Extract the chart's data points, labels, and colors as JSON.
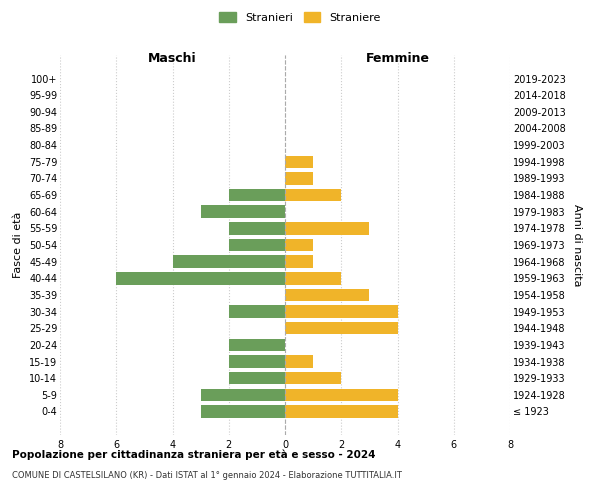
{
  "age_groups": [
    "100+",
    "95-99",
    "90-94",
    "85-89",
    "80-84",
    "75-79",
    "70-74",
    "65-69",
    "60-64",
    "55-59",
    "50-54",
    "45-49",
    "40-44",
    "35-39",
    "30-34",
    "25-29",
    "20-24",
    "15-19",
    "10-14",
    "5-9",
    "0-4"
  ],
  "birth_years": [
    "≤ 1923",
    "1924-1928",
    "1929-1933",
    "1934-1938",
    "1939-1943",
    "1944-1948",
    "1949-1953",
    "1954-1958",
    "1959-1963",
    "1964-1968",
    "1969-1973",
    "1974-1978",
    "1979-1983",
    "1984-1988",
    "1989-1993",
    "1994-1998",
    "1999-2003",
    "2004-2008",
    "2009-2013",
    "2014-2018",
    "2019-2023"
  ],
  "maschi": [
    0,
    0,
    0,
    0,
    0,
    0,
    0,
    2,
    3,
    2,
    2,
    4,
    6,
    0,
    2,
    0,
    2,
    2,
    2,
    3,
    3
  ],
  "femmine": [
    0,
    0,
    0,
    0,
    0,
    1,
    1,
    2,
    0,
    3,
    1,
    1,
    2,
    3,
    4,
    4,
    0,
    1,
    2,
    4,
    4
  ],
  "maschi_color": "#6a9e5a",
  "femmine_color": "#f0b429",
  "title_main": "Popolazione per cittadinanza straniera per età e sesso - 2024",
  "title_sub": "COMUNE DI CASTELSILANO (KR) - Dati ISTAT al 1° gennaio 2024 - Elaborazione TUTTITALIA.IT",
  "xlabel_left": "Maschi",
  "xlabel_right": "Femmine",
  "ylabel_left": "Fasce di età",
  "ylabel_right": "Anni di nascita",
  "legend_maschi": "Stranieri",
  "legend_femmine": "Straniere",
  "xlim": 8,
  "background_color": "#ffffff",
  "grid_color": "#cccccc"
}
